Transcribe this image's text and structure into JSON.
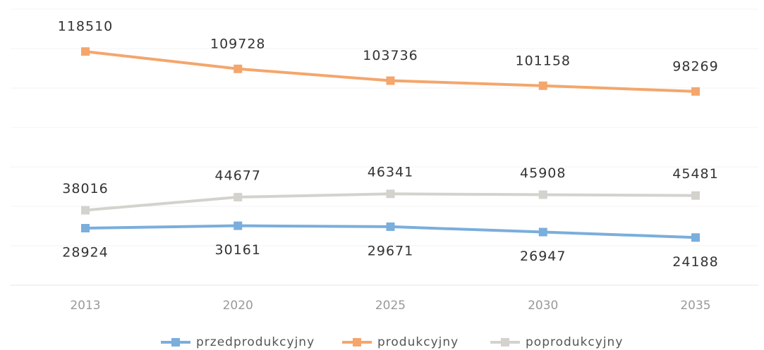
{
  "chart_data": {
    "type": "line",
    "categories": [
      "2013",
      "2020",
      "2025",
      "2030",
      "2035"
    ],
    "series": [
      {
        "name": "przedprodukcyjny",
        "color": "#7aaedc",
        "values": [
          28924,
          30161,
          29671,
          26947,
          24188
        ]
      },
      {
        "name": "produkcyjny",
        "color": "#f4a66c",
        "values": [
          118510,
          109728,
          103736,
          101158,
          98269
        ]
      },
      {
        "name": "poprodukcyjny",
        "color": "#d3d2cd",
        "values": [
          38016,
          44677,
          46341,
          45908,
          45481
        ]
      }
    ],
    "ylim": [
      0,
      140000
    ],
    "yticks": [
      0,
      20000,
      40000,
      60000,
      80000,
      100000,
      120000,
      140000
    ],
    "grid": true
  }
}
